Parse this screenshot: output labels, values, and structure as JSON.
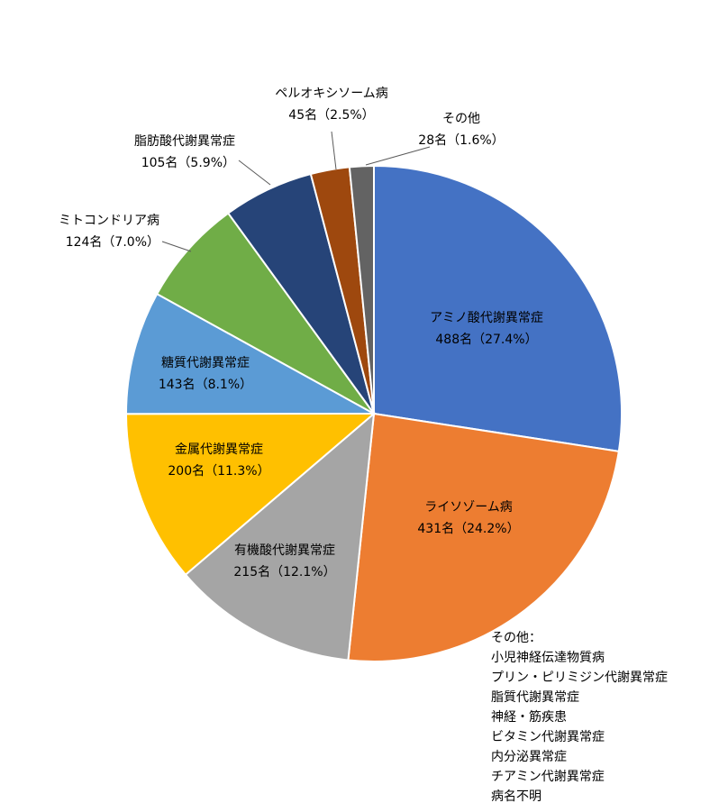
{
  "chart_data": {
    "type": "pie",
    "title": "",
    "unit": "名",
    "slices": [
      {
        "name": "アミノ酸代謝異常症",
        "value": 488,
        "pct": "27.4%",
        "label_line1": "アミノ酸代謝異常症",
        "label_line2": "488名（27.4%）",
        "color": "#4472c4"
      },
      {
        "name": "ライソゾーム病",
        "value": 431,
        "pct": "24.2%",
        "label_line1": "ライソゾーム病",
        "label_line2": "431名（24.2%）",
        "color": "#ed7d31"
      },
      {
        "name": "有機酸代謝異常症",
        "value": 215,
        "pct": "12.1%",
        "label_line1": "有機酸代謝異常症",
        "label_line2": "215名（12.1%）",
        "color": "#a5a5a5"
      },
      {
        "name": "金属代謝異常症",
        "value": 200,
        "pct": "11.3%",
        "label_line1": "金属代謝異常症",
        "label_line2": "200名（11.3%）",
        "color": "#ffc000"
      },
      {
        "name": "糖質代謝異常症",
        "value": 143,
        "pct": "8.1%",
        "label_line1": "糖質代謝異常症",
        "label_line2": "143名（8.1%）",
        "color": "#5b9bd5"
      },
      {
        "name": "ミトコンドリア病",
        "value": 124,
        "pct": "7.0%",
        "label_line1": "ミトコンドリア病",
        "label_line2": "124名（7.0%）",
        "color": "#70ad47"
      },
      {
        "name": "脂肪酸代謝異常症",
        "value": 105,
        "pct": "5.9%",
        "label_line1": "脂肪酸代謝異常症",
        "label_line2": "105名（5.9%）",
        "color": "#264478"
      },
      {
        "name": "ペルオキシソーム病",
        "value": 45,
        "pct": "2.5%",
        "label_line1": "ペルオキシソーム病",
        "label_line2": "45名（2.5%）",
        "color": "#9e480e"
      },
      {
        "name": "その他",
        "value": 28,
        "pct": "1.6%",
        "label_line1": "その他",
        "label_line2": "28名（1.6%）",
        "color": "#636363"
      }
    ]
  },
  "note": {
    "heading": "その他：",
    "items": [
      "小児神経伝達物質病",
      "プリン・ピリミジン代謝異常症",
      "脂質代謝異常症",
      "神経・筋疾患",
      "ビタミン代謝異常症",
      "内分泌異常症",
      "チアミン代謝異常症",
      "病名不明"
    ]
  }
}
